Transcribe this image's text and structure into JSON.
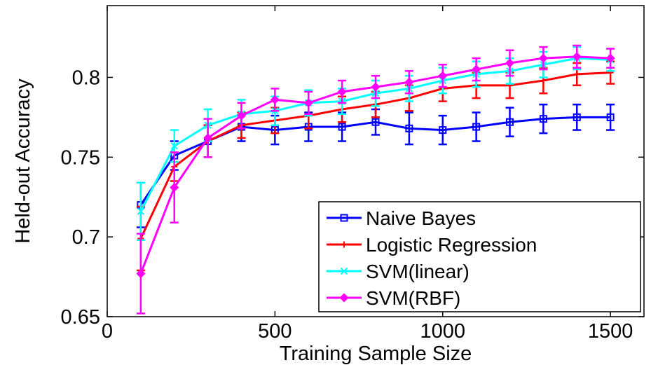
{
  "chart_data": {
    "type": "line",
    "title": "",
    "xlabel": "Training Sample Size",
    "ylabel": "Held-out Accuracy",
    "xlim": [
      0,
      1600
    ],
    "ylim": [
      0.65,
      0.845
    ],
    "xticks": [
      0,
      500,
      1000,
      1500
    ],
    "xtick_labels": [
      "0",
      "500",
      "1000",
      "1500"
    ],
    "yticks": [
      0.65,
      0.7,
      0.75,
      0.8
    ],
    "ytick_labels": [
      "0.65",
      "0.7",
      "0.75",
      "0.8"
    ],
    "grid": false,
    "legend_position": "bottom-right",
    "x": [
      100,
      200,
      300,
      400,
      500,
      600,
      700,
      800,
      900,
      1000,
      1100,
      1200,
      1300,
      1400,
      1500
    ],
    "series": [
      {
        "name": "Naive Bayes",
        "color": "#0000ff",
        "marker": "square",
        "values": [
          0.72,
          0.751,
          0.76,
          0.769,
          0.767,
          0.769,
          0.769,
          0.772,
          0.768,
          0.767,
          0.769,
          0.772,
          0.774,
          0.775,
          0.775
        ],
        "errors": [
          0.014,
          0.009,
          0.01,
          0.009,
          0.009,
          0.009,
          0.009,
          0.008,
          0.01,
          0.009,
          0.009,
          0.009,
          0.009,
          0.008,
          0.008
        ]
      },
      {
        "name": "Logistic Regression",
        "color": "#ff0000",
        "marker": "plus",
        "values": [
          0.699,
          0.744,
          0.76,
          0.77,
          0.773,
          0.776,
          0.78,
          0.783,
          0.787,
          0.793,
          0.795,
          0.795,
          0.798,
          0.802,
          0.803
        ],
        "errors": [
          0.02,
          0.009,
          0.01,
          0.008,
          0.008,
          0.008,
          0.008,
          0.008,
          0.008,
          0.008,
          0.008,
          0.008,
          0.008,
          0.007,
          0.007
        ]
      },
      {
        "name": "SVM(linear)",
        "color": "#00ffff",
        "marker": "x",
        "values": [
          0.716,
          0.757,
          0.77,
          0.777,
          0.779,
          0.784,
          0.785,
          0.79,
          0.793,
          0.798,
          0.802,
          0.804,
          0.808,
          0.812,
          0.811
        ],
        "errors": [
          0.018,
          0.01,
          0.01,
          0.009,
          0.009,
          0.008,
          0.008,
          0.008,
          0.008,
          0.008,
          0.008,
          0.008,
          0.008,
          0.007,
          0.007
        ]
      },
      {
        "name": "SVM(RBF)",
        "color": "#ff00ff",
        "marker": "diamond",
        "values": [
          0.677,
          0.731,
          0.762,
          0.776,
          0.786,
          0.784,
          0.791,
          0.794,
          0.797,
          0.801,
          0.805,
          0.809,
          0.812,
          0.813,
          0.812
        ],
        "errors": [
          0.025,
          0.022,
          0.012,
          0.008,
          0.007,
          0.007,
          0.007,
          0.007,
          0.007,
          0.007,
          0.007,
          0.008,
          0.007,
          0.007,
          0.006
        ]
      }
    ]
  }
}
